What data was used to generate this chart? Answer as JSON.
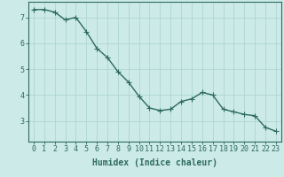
{
  "x": [
    0,
    1,
    2,
    3,
    4,
    5,
    6,
    7,
    8,
    9,
    10,
    11,
    12,
    13,
    14,
    15,
    16,
    17,
    18,
    19,
    20,
    21,
    22,
    23
  ],
  "y": [
    7.3,
    7.3,
    7.2,
    6.9,
    7.0,
    6.45,
    5.8,
    5.45,
    4.9,
    4.5,
    3.95,
    3.5,
    3.4,
    3.45,
    3.75,
    3.85,
    4.1,
    4.0,
    3.45,
    3.35,
    3.25,
    3.2,
    2.75,
    2.6
  ],
  "line_color": "#2e6b5e",
  "bg_color": "#cceae7",
  "grid_color": "#aed6d2",
  "xlabel": "Humidex (Indice chaleur)",
  "xlim": [
    -0.5,
    23.5
  ],
  "ylim": [
    2.2,
    7.6
  ],
  "yticks": [
    3,
    4,
    5,
    6,
    7
  ],
  "xticks": [
    0,
    1,
    2,
    3,
    4,
    5,
    6,
    7,
    8,
    9,
    10,
    11,
    12,
    13,
    14,
    15,
    16,
    17,
    18,
    19,
    20,
    21,
    22,
    23
  ],
  "marker": "+",
  "markersize": 4,
  "linewidth": 1.0,
  "xlabel_fontsize": 7,
  "tick_fontsize": 6,
  "axis_color": "#2e6b5e"
}
